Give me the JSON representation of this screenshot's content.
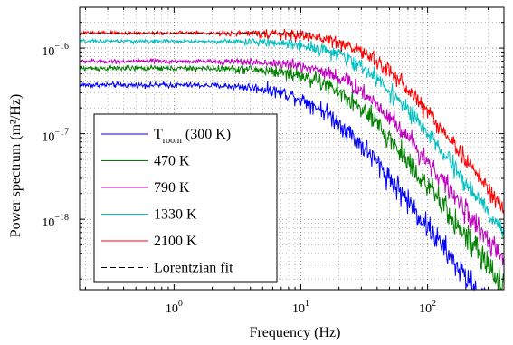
{
  "chart_data": {
    "type": "line",
    "xlabel": "Frequency (Hz)",
    "ylabel": "Power spectrum (m²/Hz)",
    "title": "",
    "xscale": "log",
    "yscale": "log",
    "xlim": [
      0.18,
      400
    ],
    "ylim": [
      1.5e-19,
      3e-16
    ],
    "grid": true,
    "legend_position": "bottom-left",
    "x_ticks": [
      {
        "value": 1,
        "base": "10",
        "exp": "0"
      },
      {
        "value": 10,
        "base": "10",
        "exp": "1"
      },
      {
        "value": 100,
        "base": "10",
        "exp": "2"
      }
    ],
    "y_ticks": [
      {
        "value": 1e-16,
        "base": "10",
        "exp": "−16"
      },
      {
        "value": 1e-17,
        "base": "10",
        "exp": "−17"
      },
      {
        "value": 1e-18,
        "base": "10",
        "exp": "−18"
      }
    ],
    "series": [
      {
        "name": "T",
        "name_sub": "room",
        "name_suffix": " (300 K)",
        "color": "#0000ff",
        "plateau": 3.7e-17,
        "corner_hz": 15,
        "noise": 0.1
      },
      {
        "name": "470 K",
        "color": "#008000",
        "plateau": 5.8e-17,
        "corner_hz": 21,
        "noise": 0.1
      },
      {
        "name": "790 K",
        "color": "#bf00bf",
        "plateau": 7e-17,
        "corner_hz": 27,
        "noise": 0.08
      },
      {
        "name": "1330 K",
        "color": "#00bfbf",
        "plateau": 1.2e-16,
        "corner_hz": 30,
        "noise": 0.07
      },
      {
        "name": "2100 K",
        "color": "#ff0000",
        "plateau": 1.5e-16,
        "corner_hz": 37,
        "noise": 0.07
      }
    ],
    "fit": {
      "name": "Lorentzian fit",
      "color": "#000000",
      "style": "dashed",
      "x_range": [
        0.18,
        12
      ],
      "level": 1.48e-16
    }
  }
}
